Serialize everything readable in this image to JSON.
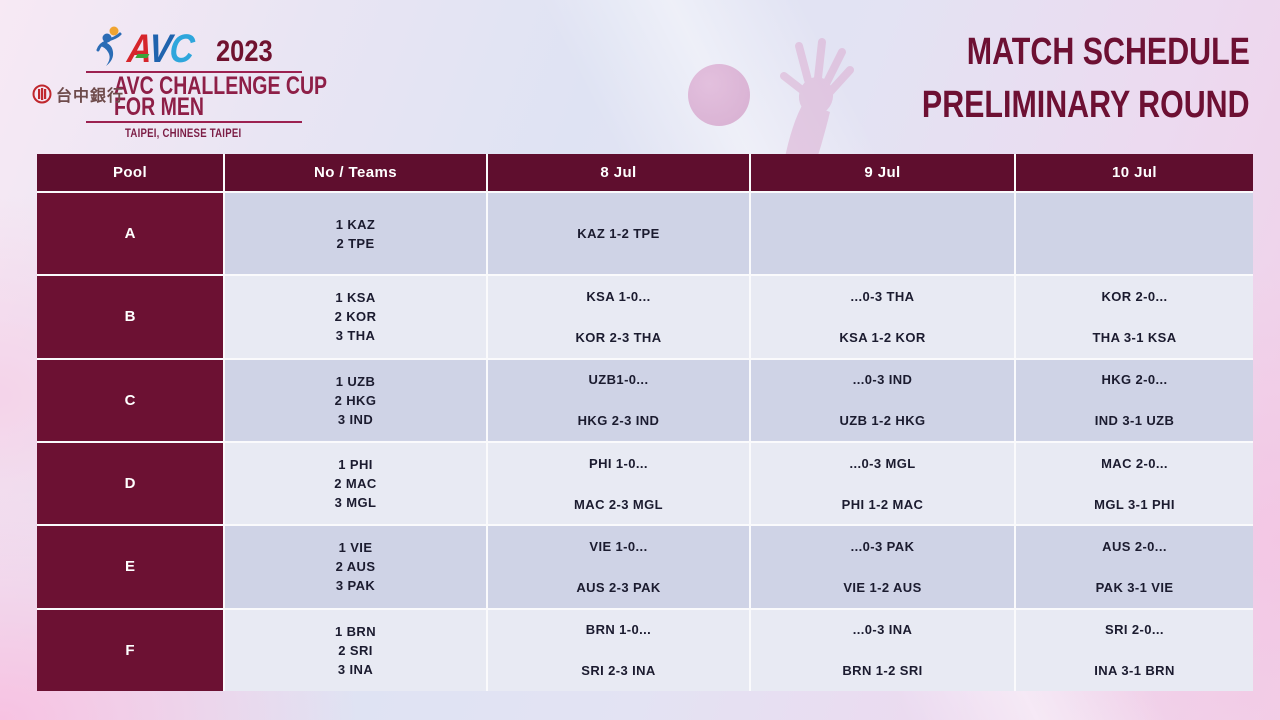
{
  "header": {
    "logo": {
      "avc_letters": [
        "A",
        "V",
        "C"
      ],
      "year": "2023",
      "event_line1": "AVC CHALLENGE CUP",
      "event_line2": "FOR MEN",
      "location": "TAIPEI, CHINESE TAIPEI",
      "bank_name": "台中銀行"
    },
    "title_line1": "MATCH SCHEDULE",
    "title_line2": "PRELIMINARY ROUND"
  },
  "colors": {
    "header_maroon": "#5f0e2e",
    "pool_maroon": "#6c1133",
    "title_maroon": "#6d1033",
    "event_maroon": "#8e1f47",
    "row_dark": "#cfd3e6",
    "row_light": "#e8eaf3",
    "cell_text": "#1b1b2f"
  },
  "table": {
    "columns": [
      "Pool",
      "No / Teams",
      "8 Jul",
      "9 Jul",
      "10 Jul"
    ],
    "rows": [
      {
        "pool": "A",
        "teams": [
          "1 KAZ",
          "2 TPE"
        ],
        "day1": [
          "KAZ 1-2 TPE"
        ],
        "day2": [],
        "day3": []
      },
      {
        "pool": "B",
        "teams": [
          "1 KSA",
          "2 KOR",
          "3 THA"
        ],
        "day1": [
          "KSA 1-0...",
          "KOR 2-3 THA"
        ],
        "day2": [
          "...0-3 THA",
          "KSA 1-2 KOR"
        ],
        "day3": [
          "KOR 2-0...",
          "THA 3-1 KSA"
        ]
      },
      {
        "pool": "C",
        "teams": [
          "1 UZB",
          "2 HKG",
          "3 IND"
        ],
        "day1": [
          "UZB1-0...",
          "HKG 2-3 IND"
        ],
        "day2": [
          "...0-3 IND",
          "UZB 1-2 HKG"
        ],
        "day3": [
          "HKG 2-0...",
          "IND 3-1 UZB"
        ]
      },
      {
        "pool": "D",
        "teams": [
          "1 PHI",
          "2 MAC",
          "3 MGL"
        ],
        "day1": [
          "PHI 1-0...",
          "MAC 2-3 MGL"
        ],
        "day2": [
          "...0-3 MGL",
          "PHI 1-2 MAC"
        ],
        "day3": [
          "MAC 2-0...",
          "MGL 3-1 PHI"
        ]
      },
      {
        "pool": "E",
        "teams": [
          "1 VIE",
          "2 AUS",
          "3 PAK"
        ],
        "day1": [
          "VIE 1-0...",
          "AUS 2-3 PAK"
        ],
        "day2": [
          "...0-3 PAK",
          "VIE 1-2 AUS"
        ],
        "day3": [
          "AUS 2-0...",
          "PAK 3-1 VIE"
        ]
      },
      {
        "pool": "F",
        "teams": [
          "1 BRN",
          "2 SRI",
          "3 INA"
        ],
        "day1": [
          "BRN 1-0...",
          "SRI 2-3 INA"
        ],
        "day2": [
          "...0-3 INA",
          "BRN 1-2 SRI"
        ],
        "day3": [
          "SRI 2-0...",
          "INA 3-1 BRN"
        ]
      }
    ]
  }
}
